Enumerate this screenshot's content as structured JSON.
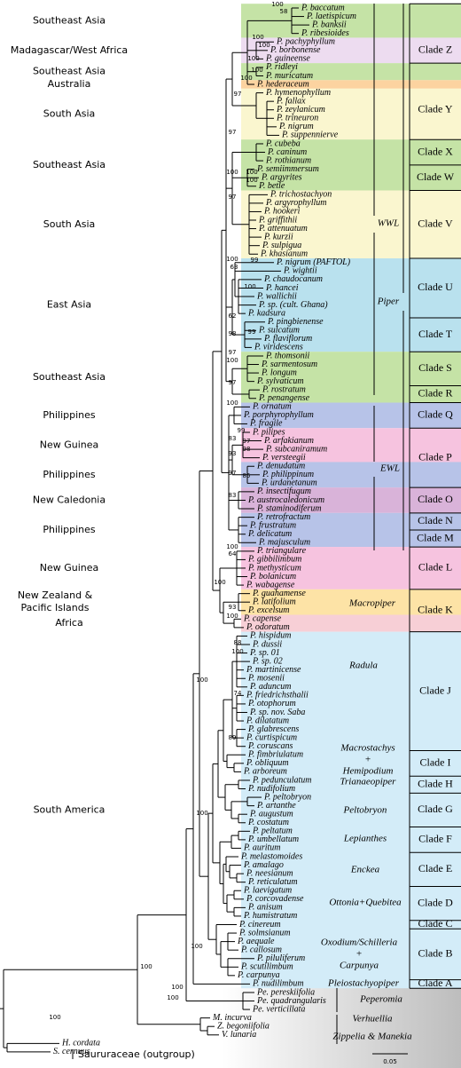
{
  "regions": [
    "Southeast Asia",
    "Madagascar/West Africa",
    "Southeast Asia",
    "Australia",
    "South Asia",
    "Southeast Asia",
    "South Asia",
    "East Asia",
    "Southeast Asia",
    "Philippines",
    "New Guinea",
    "Philippines",
    "New Caledonia",
    "Philippines",
    "New Guinea",
    [
      "New Zealand &",
      "Pacific Islands"
    ],
    "Africa",
    "South America"
  ],
  "taxa": [
    "P. baccatum",
    "P. laetispicum",
    "P. banksii",
    "P. ribesioides",
    "P. pachyphyllum",
    "P. borbonense",
    "P. guineense",
    "P. ridleyi",
    "P. muricatum",
    "P. hederaceum",
    "P. hymenophyllum",
    "P. fallax",
    "P. zeylanicum",
    "P. trineuron",
    "P. nigrum",
    "P. suppennierve",
    "P. cubeba",
    "P. caninum",
    "P. rothianum",
    "P. semiimmersum",
    "P. argyrites",
    "P. betle",
    "P. trichostachyon",
    "P. argyrophyllum",
    "P. hookeri",
    "P. griffithii",
    "P. attenuatum",
    "P. kurzii",
    "P. sulpigua",
    "P. khasianum",
    "P. nigrum (PAFTOL)",
    "P. wightii",
    "P. chaudocanum",
    "P. hancei",
    "P. wallichii",
    "P. sp. (cult. Ghana)",
    "P. kadsura",
    "P. pingbienense",
    "P. sulcatum",
    "P. flaviflorum",
    "P. viridescens",
    "P. thomsonii",
    "P. sarmentosum",
    "P. longum",
    "P. sylvaticum",
    "P. rostratum",
    "P. penangense",
    "P. ornatum",
    "P. porphyrophyllum",
    "P. fragile",
    "P. pilipes",
    "P. arfakianum",
    "P. subcaniramum",
    "P. versteegii",
    "P. denudatum",
    "P. philippinum",
    "P. urdanetanum",
    "P. insectifugum",
    "P. austrocaledonicum",
    "P. staminodiferum",
    "P. retrofractum",
    "P. frustratum",
    "P. delicatum",
    "P. majusculum",
    "P. triangulare",
    "P. gibbilimbum",
    "P. methysticum",
    "P. bolanicum",
    "P. wabagense",
    "P. guahamense",
    "P. latifolium",
    "P. excelsum",
    "P. capense",
    "P. odoratum",
    "P. hispidum",
    "P. dussii",
    "P. sp. 01",
    "P. sp. 02",
    "P. martinicense",
    "P. mosenii",
    "P. aduncum",
    "P. friedrichsthalii",
    "P. otophorum",
    "P. sp. nov. Saba",
    "P. dilatatum",
    "P. glabrescens",
    "P. curtispicum",
    "P. coruscans",
    "P. fimbriulatum",
    "P. obliquum",
    "P. arboreum",
    "P. pedunculatum",
    "P. nudifolium",
    "P. peltobryon",
    "P. artanthe",
    "P. augustum",
    "P. costatum",
    "P. peltatum",
    "P. umbellatum",
    "P. auritum",
    "P. melastomoides",
    "P. amalago",
    "P. neesianum",
    "P. reticulatum",
    "P. laevigatum",
    "P. corcovadense",
    "P. anisum",
    "P. humistratum",
    "P. cinereum",
    "P. solmsianum",
    "P. aequale",
    "P. callosum",
    "P. piluliferum",
    "P. scutilimbum",
    "P. carpunya",
    "P. nudilimbum",
    "Pe. pereskiifolia",
    "Pe. quadrangularis",
    "Pe. verticillata",
    "M. incurva",
    "Z. begoniifolia",
    "V. lunaria",
    "H. cordata",
    "S. cernuus"
  ],
  "clades": [
    "Clade Z",
    "Clade Y",
    "Clade X",
    "Clade W",
    "Clade V",
    "Clade U",
    "Clade T",
    "Clade S",
    "Clade R",
    "Clade Q",
    "Clade P",
    "Clade O",
    "Clade N",
    "Clade M",
    "Clade L",
    "Clade K",
    "Clade J",
    "Clade I",
    "Clade H",
    "Clade G",
    "Clade F",
    "Clade E",
    "Clade D",
    "Clade C",
    "Clade B",
    "Clade A"
  ],
  "groups": [
    "WWL",
    "Piper",
    "EWL",
    "Macropiper",
    "Radula",
    [
      "Macrostachys",
      "+",
      "Hemipodium"
    ],
    "Trianaeopiper",
    "Peltobryon",
    "Lepianthes",
    "Enckea",
    "Ottonia+Quebitea",
    [
      "Oxodium/Schilleria",
      "+",
      "Carpunya"
    ],
    "Pleiostachyopiper",
    "Peperomia",
    "Verhuellia",
    "Zippelia & Manekia",
    "Saururaceae (outgroup)"
  ],
  "support": [
    100,
    58,
    100,
    100,
    100,
    100,
    100,
    97,
    97,
    100,
    100,
    100,
    97,
    100,
    63,
    99,
    100,
    62,
    98,
    99,
    97,
    100,
    97,
    100,
    99,
    83,
    97,
    93,
    98,
    97,
    85,
    83,
    64,
    100,
    93,
    100,
    100,
    88,
    100,
    74,
    100,
    89,
    100,
    100,
    100,
    100,
    100,
    100
  ],
  "scale_bar": "0.05"
}
